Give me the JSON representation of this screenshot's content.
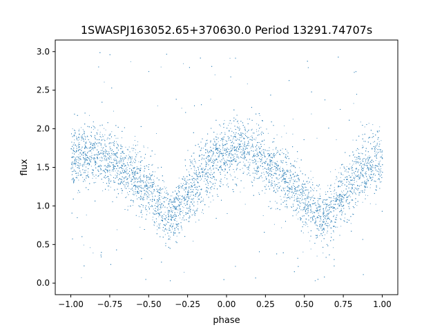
{
  "chart_data": {
    "type": "scatter",
    "title": "1SWASPJ163052.65+370630.0 Period 13291.74707s",
    "xlabel": "phase",
    "ylabel": "flux",
    "xlim": [
      -1.1,
      1.1
    ],
    "ylim": [
      -0.15,
      3.15
    ],
    "x_ticks": [
      -1.0,
      -0.75,
      -0.5,
      -0.25,
      0.0,
      0.25,
      0.5,
      0.75,
      1.0
    ],
    "x_tick_labels": [
      "−1.00",
      "−0.75",
      "−0.50",
      "−0.25",
      "0.00",
      "0.25",
      "0.50",
      "0.75",
      "1.00"
    ],
    "y_ticks": [
      0.0,
      0.5,
      1.0,
      1.5,
      2.0,
      2.5,
      3.0
    ],
    "y_tick_labels": [
      "0.0",
      "0.5",
      "1.0",
      "1.5",
      "2.0",
      "2.5",
      "3.0"
    ],
    "grid": false,
    "legend": "none",
    "marker_color": "#1f77b4",
    "series": [
      {
        "x": [
          -1.0,
          -0.9,
          -0.8,
          -0.7,
          -0.6,
          -0.5,
          -0.45,
          -0.4,
          -0.37,
          -0.3,
          -0.2,
          -0.1,
          0.0,
          0.1,
          0.2,
          0.3,
          0.4,
          0.5,
          0.55,
          0.6,
          0.63,
          0.7,
          0.8,
          0.9,
          1.0
        ],
        "y": [
          1.6,
          1.68,
          1.66,
          1.55,
          1.4,
          1.2,
          1.05,
          0.9,
          0.85,
          1.0,
          1.3,
          1.55,
          1.68,
          1.72,
          1.65,
          1.5,
          1.3,
          1.1,
          0.95,
          0.85,
          0.83,
          1.0,
          1.3,
          1.52,
          1.6
        ]
      }
    ]
  }
}
